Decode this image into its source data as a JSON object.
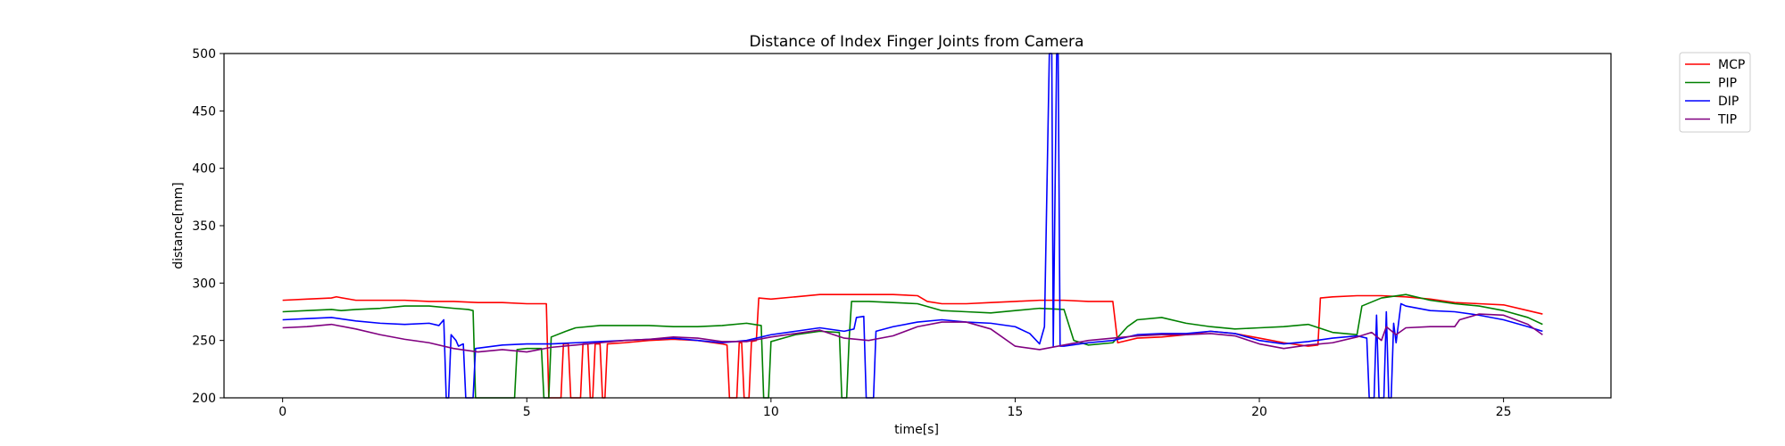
{
  "chart_data": {
    "type": "line",
    "title": "Distance of Index Finger Joints from Camera",
    "xlabel": "time[s]",
    "ylabel": "distance[mm]",
    "xlim": [
      -1.2,
      27.2
    ],
    "ylim": [
      200,
      500
    ],
    "xticks": [
      0,
      5,
      10,
      15,
      20,
      25
    ],
    "yticks": [
      200,
      250,
      300,
      350,
      400,
      450,
      500
    ],
    "grid": false,
    "legend_position": "outside top-right",
    "series": [
      {
        "name": "MCP",
        "color": "#ff0000",
        "points": [
          [
            0,
            285
          ],
          [
            0.5,
            286
          ],
          [
            1.0,
            287
          ],
          [
            1.1,
            288
          ],
          [
            1.5,
            285
          ],
          [
            2.0,
            285
          ],
          [
            2.5,
            285
          ],
          [
            3.0,
            284
          ],
          [
            3.5,
            284
          ],
          [
            4.0,
            283
          ],
          [
            4.5,
            283
          ],
          [
            5.0,
            282
          ],
          [
            5.4,
            282
          ],
          [
            5.45,
            200
          ],
          [
            5.7,
            200
          ],
          [
            5.75,
            247
          ],
          [
            5.85,
            247
          ],
          [
            5.9,
            200
          ],
          [
            6.1,
            200
          ],
          [
            6.15,
            247
          ],
          [
            6.25,
            247
          ],
          [
            6.3,
            200
          ],
          [
            6.35,
            200
          ],
          [
            6.4,
            247
          ],
          [
            6.5,
            247
          ],
          [
            6.55,
            200
          ],
          [
            6.6,
            200
          ],
          [
            6.65,
            247
          ],
          [
            7.0,
            248
          ],
          [
            7.5,
            250
          ],
          [
            8.0,
            251
          ],
          [
            8.5,
            250
          ],
          [
            9.0,
            247
          ],
          [
            9.1,
            246
          ],
          [
            9.15,
            200
          ],
          [
            9.3,
            200
          ],
          [
            9.35,
            248
          ],
          [
            9.4,
            248
          ],
          [
            9.45,
            200
          ],
          [
            9.55,
            200
          ],
          [
            9.6,
            249
          ],
          [
            9.7,
            250
          ],
          [
            9.75,
            287
          ],
          [
            10.0,
            286
          ],
          [
            10.5,
            288
          ],
          [
            11.0,
            290
          ],
          [
            11.5,
            290
          ],
          [
            12.0,
            290
          ],
          [
            12.5,
            290
          ],
          [
            13.0,
            289
          ],
          [
            13.2,
            284
          ],
          [
            13.5,
            282
          ],
          [
            14.0,
            282
          ],
          [
            14.5,
            283
          ],
          [
            15.0,
            284
          ],
          [
            15.5,
            285
          ],
          [
            16.0,
            285
          ],
          [
            16.5,
            284
          ],
          [
            17.0,
            284
          ],
          [
            17.1,
            248
          ],
          [
            17.5,
            252
          ],
          [
            18.0,
            253
          ],
          [
            18.5,
            255
          ],
          [
            19.0,
            258
          ],
          [
            19.5,
            256
          ],
          [
            20.0,
            252
          ],
          [
            20.5,
            248
          ],
          [
            21.0,
            245
          ],
          [
            21.2,
            246
          ],
          [
            21.25,
            287
          ],
          [
            21.5,
            288
          ],
          [
            22.0,
            289
          ],
          [
            22.5,
            289
          ],
          [
            23.0,
            288
          ],
          [
            23.5,
            286
          ],
          [
            24.0,
            283
          ],
          [
            24.5,
            282
          ],
          [
            25.0,
            281
          ],
          [
            25.5,
            276
          ],
          [
            25.8,
            273
          ]
        ]
      },
      {
        "name": "PIP",
        "color": "#008000",
        "points": [
          [
            0,
            275
          ],
          [
            0.5,
            276
          ],
          [
            1.0,
            277
          ],
          [
            1.2,
            276
          ],
          [
            1.5,
            277
          ],
          [
            2.0,
            278
          ],
          [
            2.5,
            280
          ],
          [
            3.0,
            280
          ],
          [
            3.5,
            278
          ],
          [
            3.8,
            277
          ],
          [
            3.9,
            276
          ],
          [
            3.95,
            200
          ],
          [
            4.75,
            200
          ],
          [
            4.8,
            242
          ],
          [
            5.0,
            243
          ],
          [
            5.3,
            243
          ],
          [
            5.35,
            200
          ],
          [
            5.45,
            200
          ],
          [
            5.5,
            253
          ],
          [
            5.8,
            258
          ],
          [
            6.0,
            261
          ],
          [
            6.5,
            263
          ],
          [
            7.0,
            263
          ],
          [
            7.5,
            263
          ],
          [
            8.0,
            262
          ],
          [
            8.5,
            262
          ],
          [
            9.0,
            263
          ],
          [
            9.5,
            265
          ],
          [
            9.8,
            263
          ],
          [
            9.85,
            200
          ],
          [
            9.95,
            200
          ],
          [
            10.0,
            249
          ],
          [
            10.5,
            255
          ],
          [
            11.0,
            258
          ],
          [
            11.4,
            257
          ],
          [
            11.45,
            200
          ],
          [
            11.55,
            200
          ],
          [
            11.6,
            251
          ],
          [
            11.65,
            284
          ],
          [
            12.0,
            284
          ],
          [
            12.5,
            283
          ],
          [
            13.0,
            282
          ],
          [
            13.5,
            276
          ],
          [
            14.0,
            275
          ],
          [
            14.5,
            274
          ],
          [
            15.0,
            276
          ],
          [
            15.5,
            278
          ],
          [
            16.0,
            277
          ],
          [
            16.2,
            250
          ],
          [
            16.5,
            246
          ],
          [
            17.0,
            248
          ],
          [
            17.3,
            262
          ],
          [
            17.5,
            268
          ],
          [
            18.0,
            270
          ],
          [
            18.5,
            265
          ],
          [
            19.0,
            262
          ],
          [
            19.5,
            260
          ],
          [
            20.0,
            261
          ],
          [
            20.5,
            262
          ],
          [
            21.0,
            264
          ],
          [
            21.5,
            257
          ],
          [
            22.0,
            255
          ],
          [
            22.1,
            280
          ],
          [
            22.5,
            287
          ],
          [
            23.0,
            290
          ],
          [
            23.5,
            285
          ],
          [
            24.0,
            282
          ],
          [
            24.5,
            280
          ],
          [
            25.0,
            276
          ],
          [
            25.5,
            270
          ],
          [
            25.8,
            264
          ]
        ]
      },
      {
        "name": "DIP",
        "color": "#0000ff",
        "points": [
          [
            0,
            268
          ],
          [
            0.5,
            269
          ],
          [
            1.0,
            270
          ],
          [
            1.5,
            267
          ],
          [
            2.0,
            265
          ],
          [
            2.5,
            264
          ],
          [
            3.0,
            265
          ],
          [
            3.2,
            263
          ],
          [
            3.3,
            268
          ],
          [
            3.35,
            200
          ],
          [
            3.4,
            200
          ],
          [
            3.45,
            255
          ],
          [
            3.55,
            250
          ],
          [
            3.6,
            245
          ],
          [
            3.7,
            247
          ],
          [
            3.75,
            200
          ],
          [
            3.9,
            200
          ],
          [
            3.95,
            243
          ],
          [
            4.5,
            246
          ],
          [
            5.0,
            247
          ],
          [
            5.5,
            247
          ],
          [
            6.0,
            248
          ],
          [
            6.5,
            249
          ],
          [
            7.0,
            250
          ],
          [
            7.5,
            251
          ],
          [
            8.0,
            252
          ],
          [
            8.5,
            250
          ],
          [
            9.0,
            248
          ],
          [
            9.5,
            250
          ],
          [
            10.0,
            255
          ],
          [
            10.5,
            258
          ],
          [
            11.0,
            261
          ],
          [
            11.5,
            258
          ],
          [
            11.7,
            260
          ],
          [
            11.75,
            270
          ],
          [
            11.9,
            271
          ],
          [
            11.95,
            200
          ],
          [
            12.1,
            200
          ],
          [
            12.15,
            258
          ],
          [
            12.5,
            262
          ],
          [
            13.0,
            266
          ],
          [
            13.5,
            268
          ],
          [
            14.0,
            266
          ],
          [
            14.5,
            265
          ],
          [
            15.0,
            262
          ],
          [
            15.3,
            256
          ],
          [
            15.5,
            247
          ],
          [
            15.6,
            262
          ],
          [
            15.7,
            500
          ],
          [
            15.75,
            500
          ],
          [
            15.78,
            245
          ],
          [
            15.85,
            500
          ],
          [
            15.88,
            500
          ],
          [
            15.92,
            245
          ],
          [
            16.0,
            245
          ],
          [
            16.5,
            248
          ],
          [
            17.0,
            250
          ],
          [
            17.5,
            255
          ],
          [
            18.0,
            256
          ],
          [
            18.5,
            256
          ],
          [
            19.0,
            258
          ],
          [
            19.5,
            256
          ],
          [
            20.0,
            250
          ],
          [
            20.5,
            247
          ],
          [
            21.0,
            249
          ],
          [
            21.5,
            252
          ],
          [
            22.0,
            254
          ],
          [
            22.2,
            252
          ],
          [
            22.25,
            200
          ],
          [
            22.35,
            200
          ],
          [
            22.4,
            272
          ],
          [
            22.45,
            200
          ],
          [
            22.55,
            200
          ],
          [
            22.6,
            275
          ],
          [
            22.65,
            200
          ],
          [
            22.7,
            200
          ],
          [
            22.75,
            265
          ],
          [
            22.8,
            248
          ],
          [
            22.9,
            282
          ],
          [
            23.0,
            280
          ],
          [
            23.5,
            276
          ],
          [
            24.0,
            275
          ],
          [
            24.5,
            272
          ],
          [
            25.0,
            268
          ],
          [
            25.5,
            262
          ],
          [
            25.8,
            258
          ]
        ]
      },
      {
        "name": "TIP",
        "color": "#800080",
        "points": [
          [
            0,
            261
          ],
          [
            0.5,
            262
          ],
          [
            1.0,
            264
          ],
          [
            1.5,
            260
          ],
          [
            2.0,
            255
          ],
          [
            2.5,
            251
          ],
          [
            3.0,
            248
          ],
          [
            3.5,
            243
          ],
          [
            4.0,
            240
          ],
          [
            4.5,
            242
          ],
          [
            5.0,
            240
          ],
          [
            5.5,
            244
          ],
          [
            6.0,
            246
          ],
          [
            6.5,
            248
          ],
          [
            7.0,
            250
          ],
          [
            7.5,
            251
          ],
          [
            8.0,
            253
          ],
          [
            8.5,
            252
          ],
          [
            9.0,
            249
          ],
          [
            9.5,
            249
          ],
          [
            10.0,
            253
          ],
          [
            10.5,
            256
          ],
          [
            11.0,
            259
          ],
          [
            11.5,
            252
          ],
          [
            12.0,
            250
          ],
          [
            12.5,
            254
          ],
          [
            13.0,
            262
          ],
          [
            13.5,
            266
          ],
          [
            14.0,
            266
          ],
          [
            14.5,
            260
          ],
          [
            15.0,
            245
          ],
          [
            15.5,
            242
          ],
          [
            16.0,
            246
          ],
          [
            16.5,
            250
          ],
          [
            17.0,
            252
          ],
          [
            17.5,
            254
          ],
          [
            18.0,
            255
          ],
          [
            18.5,
            255
          ],
          [
            19.0,
            256
          ],
          [
            19.5,
            254
          ],
          [
            20.0,
            247
          ],
          [
            20.5,
            243
          ],
          [
            21.0,
            246
          ],
          [
            21.5,
            248
          ],
          [
            22.0,
            253
          ],
          [
            22.3,
            257
          ],
          [
            22.5,
            250
          ],
          [
            22.6,
            262
          ],
          [
            22.8,
            255
          ],
          [
            23.0,
            261
          ],
          [
            23.5,
            262
          ],
          [
            24.0,
            262
          ],
          [
            24.1,
            268
          ],
          [
            24.5,
            273
          ],
          [
            25.0,
            272
          ],
          [
            25.5,
            264
          ],
          [
            25.8,
            255
          ]
        ]
      }
    ]
  }
}
